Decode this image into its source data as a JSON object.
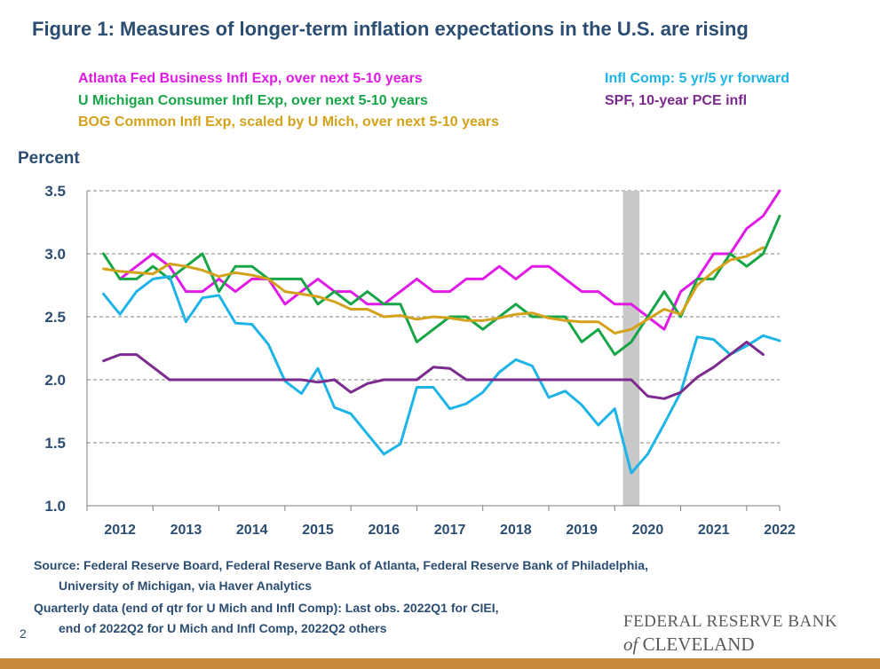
{
  "title": "Figure 1: Measures of longer-term inflation expectations in the U.S. are rising",
  "legend": [
    {
      "label": "Atlanta Fed Business Infl Exp, over next 5-10 years",
      "color": "#e11be6"
    },
    {
      "label": "U Michigan Consumer Infl Exp, over next 5-10 years",
      "color": "#18a548"
    },
    {
      "label": "BOG Common Infl Exp, scaled by U Mich, over next 5-10 years",
      "color": "#d4a21a"
    },
    {
      "label": "Infl Comp: 5 yr/5 yr forward",
      "color": "#1eb4e6"
    },
    {
      "label": "SPF, 10-year PCE infl",
      "color": "#7b2a8e"
    }
  ],
  "source": {
    "line1": "Source: Federal Reserve Board, Federal Reserve Bank of Atlanta, Federal Reserve Bank of Philadelphia,",
    "line2": "University of Michigan, via Haver Analytics",
    "line3": "Quarterly data (end of qtr for U Mich and Infl Comp): Last obs. 2022Q1 for CIEI,",
    "line4": "end of 2022Q2 for U Mich and Infl Comp, 2022Q2 others"
  },
  "page_number": "2",
  "logo": {
    "line1": "FEDERAL RESERVE BANK",
    "line2_prefix": "of",
    "line2_rest": "CLEVELAND"
  },
  "chart_data": {
    "type": "line",
    "ylabel": "Percent",
    "xlim": [
      2012.0,
      2022.5
    ],
    "ylim": [
      1.0,
      3.5
    ],
    "yticks": [
      "1.0",
      "1.5",
      "2.0",
      "2.5",
      "3.0",
      "3.5"
    ],
    "xticks": [
      "2012",
      "2013",
      "2014",
      "2015",
      "2016",
      "2017",
      "2018",
      "2019",
      "2020",
      "2021",
      "2022"
    ],
    "grid": "horizontal dashed",
    "recession_shading": [
      2020.125,
      2020.375
    ],
    "series": [
      {
        "name": "Atlanta Fed Business Infl Exp, over next 5-10 years",
        "color": "#e11be6",
        "x": [
          2012.5,
          2012.75,
          2013.0,
          2013.25,
          2013.5,
          2013.75,
          2014.0,
          2014.25,
          2014.5,
          2014.75,
          2015.0,
          2015.25,
          2015.5,
          2015.75,
          2016.0,
          2016.25,
          2016.5,
          2016.75,
          2017.0,
          2017.25,
          2017.5,
          2017.75,
          2018.0,
          2018.25,
          2018.5,
          2018.75,
          2019.0,
          2019.25,
          2019.5,
          2019.75,
          2020.0,
          2020.25,
          2020.5,
          2020.75,
          2021.0,
          2021.25,
          2021.5,
          2021.75,
          2022.0,
          2022.25,
          2022.5
        ],
        "y": [
          2.8,
          2.9,
          3.0,
          2.9,
          2.7,
          2.7,
          2.8,
          2.7,
          2.8,
          2.8,
          2.6,
          2.7,
          2.8,
          2.7,
          2.7,
          2.6,
          2.6,
          2.7,
          2.8,
          2.7,
          2.7,
          2.8,
          2.8,
          2.9,
          2.8,
          2.9,
          2.9,
          2.8,
          2.7,
          2.7,
          2.6,
          2.6,
          2.5,
          2.4,
          2.7,
          2.8,
          3.0,
          3.0,
          3.2,
          3.3,
          3.5
        ]
      },
      {
        "name": "U Michigan Consumer Infl Exp, over next 5-10 years",
        "color": "#18a548",
        "x": [
          2012.25,
          2012.5,
          2012.75,
          2013.0,
          2013.25,
          2013.5,
          2013.75,
          2014.0,
          2014.25,
          2014.5,
          2014.75,
          2015.0,
          2015.25,
          2015.5,
          2015.75,
          2016.0,
          2016.25,
          2016.5,
          2016.75,
          2017.0,
          2017.25,
          2017.5,
          2017.75,
          2018.0,
          2018.25,
          2018.5,
          2018.75,
          2019.0,
          2019.25,
          2019.5,
          2019.75,
          2020.0,
          2020.25,
          2020.5,
          2020.75,
          2021.0,
          2021.25,
          2021.5,
          2021.75,
          2022.0,
          2022.25,
          2022.5
        ],
        "y": [
          3.0,
          2.8,
          2.8,
          2.9,
          2.8,
          2.9,
          3.0,
          2.7,
          2.9,
          2.9,
          2.8,
          2.8,
          2.8,
          2.6,
          2.7,
          2.6,
          2.7,
          2.6,
          2.6,
          2.3,
          2.4,
          2.5,
          2.5,
          2.4,
          2.5,
          2.6,
          2.5,
          2.5,
          2.5,
          2.3,
          2.4,
          2.2,
          2.3,
          2.5,
          2.7,
          2.5,
          2.8,
          2.8,
          3.0,
          2.9,
          3.0,
          3.3
        ]
      },
      {
        "name": "BOG Common Infl Exp, scaled by U Mich, over next 5-10 years",
        "color": "#d4a21a",
        "x": [
          2012.25,
          2012.5,
          2012.75,
          2013.0,
          2013.25,
          2013.5,
          2013.75,
          2014.0,
          2014.25,
          2014.5,
          2014.75,
          2015.0,
          2015.25,
          2015.5,
          2015.75,
          2016.0,
          2016.25,
          2016.5,
          2016.75,
          2017.0,
          2017.25,
          2017.5,
          2017.75,
          2018.0,
          2018.25,
          2018.5,
          2018.75,
          2019.0,
          2019.25,
          2019.5,
          2019.75,
          2020.0,
          2020.25,
          2020.5,
          2020.75,
          2021.0,
          2021.25,
          2021.5,
          2021.75,
          2022.0,
          2022.25
        ],
        "y": [
          2.88,
          2.86,
          2.85,
          2.84,
          2.92,
          2.9,
          2.87,
          2.82,
          2.85,
          2.83,
          2.8,
          2.7,
          2.68,
          2.66,
          2.62,
          2.56,
          2.56,
          2.5,
          2.51,
          2.48,
          2.5,
          2.49,
          2.47,
          2.47,
          2.49,
          2.52,
          2.53,
          2.49,
          2.47,
          2.46,
          2.46,
          2.37,
          2.4,
          2.48,
          2.56,
          2.52,
          2.75,
          2.86,
          2.95,
          2.98,
          3.05
        ]
      },
      {
        "name": "Infl Comp: 5 yr/5 yr forward",
        "color": "#1eb4e6",
        "x": [
          2012.25,
          2012.5,
          2012.75,
          2013.0,
          2013.25,
          2013.5,
          2013.75,
          2014.0,
          2014.25,
          2014.5,
          2014.75,
          2015.0,
          2015.25,
          2015.5,
          2015.75,
          2016.0,
          2016.25,
          2016.5,
          2016.75,
          2017.0,
          2017.25,
          2017.5,
          2017.75,
          2018.0,
          2018.25,
          2018.5,
          2018.75,
          2019.0,
          2019.25,
          2019.5,
          2019.75,
          2020.0,
          2020.25,
          2020.5,
          2020.75,
          2021.0,
          2021.25,
          2021.5,
          2021.75,
          2022.0,
          2022.25,
          2022.5
        ],
        "y": [
          2.68,
          2.52,
          2.7,
          2.8,
          2.82,
          2.46,
          2.65,
          2.67,
          2.45,
          2.44,
          2.28,
          1.99,
          1.89,
          2.09,
          1.78,
          1.73,
          1.57,
          1.41,
          1.49,
          1.94,
          1.94,
          1.77,
          1.81,
          1.9,
          2.06,
          2.16,
          2.11,
          1.86,
          1.91,
          1.8,
          1.64,
          1.77,
          1.26,
          1.41,
          1.65,
          1.9,
          2.34,
          2.32,
          2.2,
          2.27,
          2.35,
          2.31
        ]
      },
      {
        "name": "SPF, 10-year PCE infl",
        "color": "#7b2a8e",
        "x": [
          2012.25,
          2012.5,
          2012.75,
          2013.0,
          2013.25,
          2013.5,
          2013.75,
          2014.0,
          2014.25,
          2014.5,
          2014.75,
          2015.0,
          2015.25,
          2015.5,
          2015.75,
          2016.0,
          2016.25,
          2016.5,
          2016.75,
          2017.0,
          2017.25,
          2017.5,
          2017.75,
          2018.0,
          2018.25,
          2018.5,
          2018.75,
          2019.0,
          2019.25,
          2019.5,
          2019.75,
          2020.0,
          2020.25,
          2020.5,
          2020.75,
          2021.0,
          2021.25,
          2021.5,
          2021.75,
          2022.0,
          2022.25
        ],
        "y": [
          2.15,
          2.2,
          2.2,
          2.1,
          2.0,
          2.0,
          2.0,
          2.0,
          2.0,
          2.0,
          2.0,
          2.0,
          2.0,
          1.98,
          2.0,
          1.9,
          1.97,
          2.0,
          2.0,
          2.0,
          2.1,
          2.09,
          2.0,
          2.0,
          2.0,
          2.0,
          2.0,
          2.0,
          2.0,
          2.0,
          2.0,
          2.0,
          2.0,
          1.87,
          1.85,
          1.9,
          2.02,
          2.1,
          2.2,
          2.3,
          2.2
        ]
      }
    ]
  }
}
